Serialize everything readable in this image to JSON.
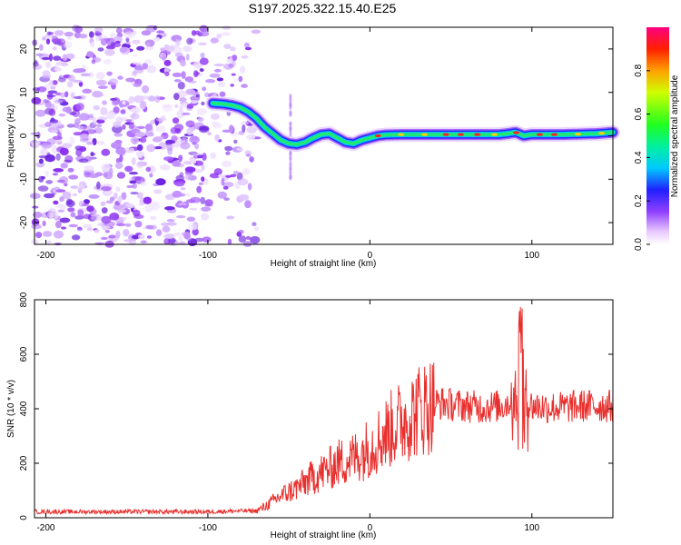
{
  "title": "S197.2025.322.15.40.E25",
  "chart_data": [
    {
      "type": "heatmap",
      "name": "spectrogram",
      "xlabel": "Height of straight line (km)",
      "ylabel": "Frequency (Hz)",
      "xlim": [
        -207,
        150
      ],
      "ylim": [
        -25,
        25
      ],
      "xticks": [
        -200,
        -100,
        0,
        100
      ],
      "yticks": [
        20,
        10,
        0,
        -10,
        -20
      ],
      "colorbar": {
        "label": "Normalized spectral amplitude",
        "range": [
          0,
          1
        ],
        "ticks": [
          0.0,
          0.2,
          0.4,
          0.6,
          0.8
        ]
      },
      "signal_trace": {
        "x": [
          -97,
          -90,
          -85,
          -80,
          -75,
          -70,
          -65,
          -60,
          -55,
          -50,
          -45,
          -40,
          -35,
          -30,
          -25,
          -20,
          -15,
          -10,
          -5,
          0,
          5,
          10,
          20,
          40,
          60,
          80,
          85,
          90,
          95,
          100,
          120,
          140,
          150
        ],
        "y": [
          7.5,
          7.3,
          7.0,
          6.5,
          5.5,
          4.0,
          2.0,
          0.5,
          -1.0,
          -1.8,
          -2.0,
          -1.5,
          -0.5,
          0.3,
          0.5,
          -0.5,
          -1.5,
          -1.8,
          -1.0,
          -0.5,
          0.0,
          0.2,
          0.3,
          0.3,
          0.3,
          0.3,
          0.5,
          0.8,
          0.0,
          0.3,
          0.3,
          0.5,
          0.8
        ]
      },
      "noise_region_x": [
        -207,
        -70
      ]
    },
    {
      "type": "line",
      "name": "snr",
      "xlabel": "Height of straight line (km)",
      "ylabel": "SNR (10 * v/v)",
      "xlim": [
        -207,
        150
      ],
      "ylim": [
        0,
        800
      ],
      "xticks": [
        -200,
        -100,
        0,
        100
      ],
      "yticks": [
        0,
        200,
        400,
        600,
        800
      ],
      "color": "#e8302e",
      "envelope": {
        "x": [
          -207,
          -150,
          -100,
          -80,
          -70,
          -65,
          -60,
          -55,
          -50,
          -45,
          -40,
          -35,
          -30,
          -25,
          -20,
          -15,
          -10,
          -5,
          0,
          5,
          10,
          15,
          20,
          25,
          30,
          35,
          40,
          45,
          50,
          60,
          70,
          80,
          85,
          90,
          95,
          100,
          110,
          120,
          130,
          140,
          150
        ],
        "y": [
          22,
          22,
          22,
          25,
          25,
          40,
          60,
          80,
          95,
          110,
          130,
          150,
          165,
          180,
          200,
          210,
          220,
          240,
          260,
          285,
          310,
          335,
          355,
          375,
          395,
          410,
          420,
          420,
          415,
          410,
          405,
          410,
          420,
          450,
          420,
          410,
          405,
          405,
          410,
          410,
          410
        ]
      },
      "spike": {
        "x": 93,
        "y": 800
      }
    }
  ]
}
